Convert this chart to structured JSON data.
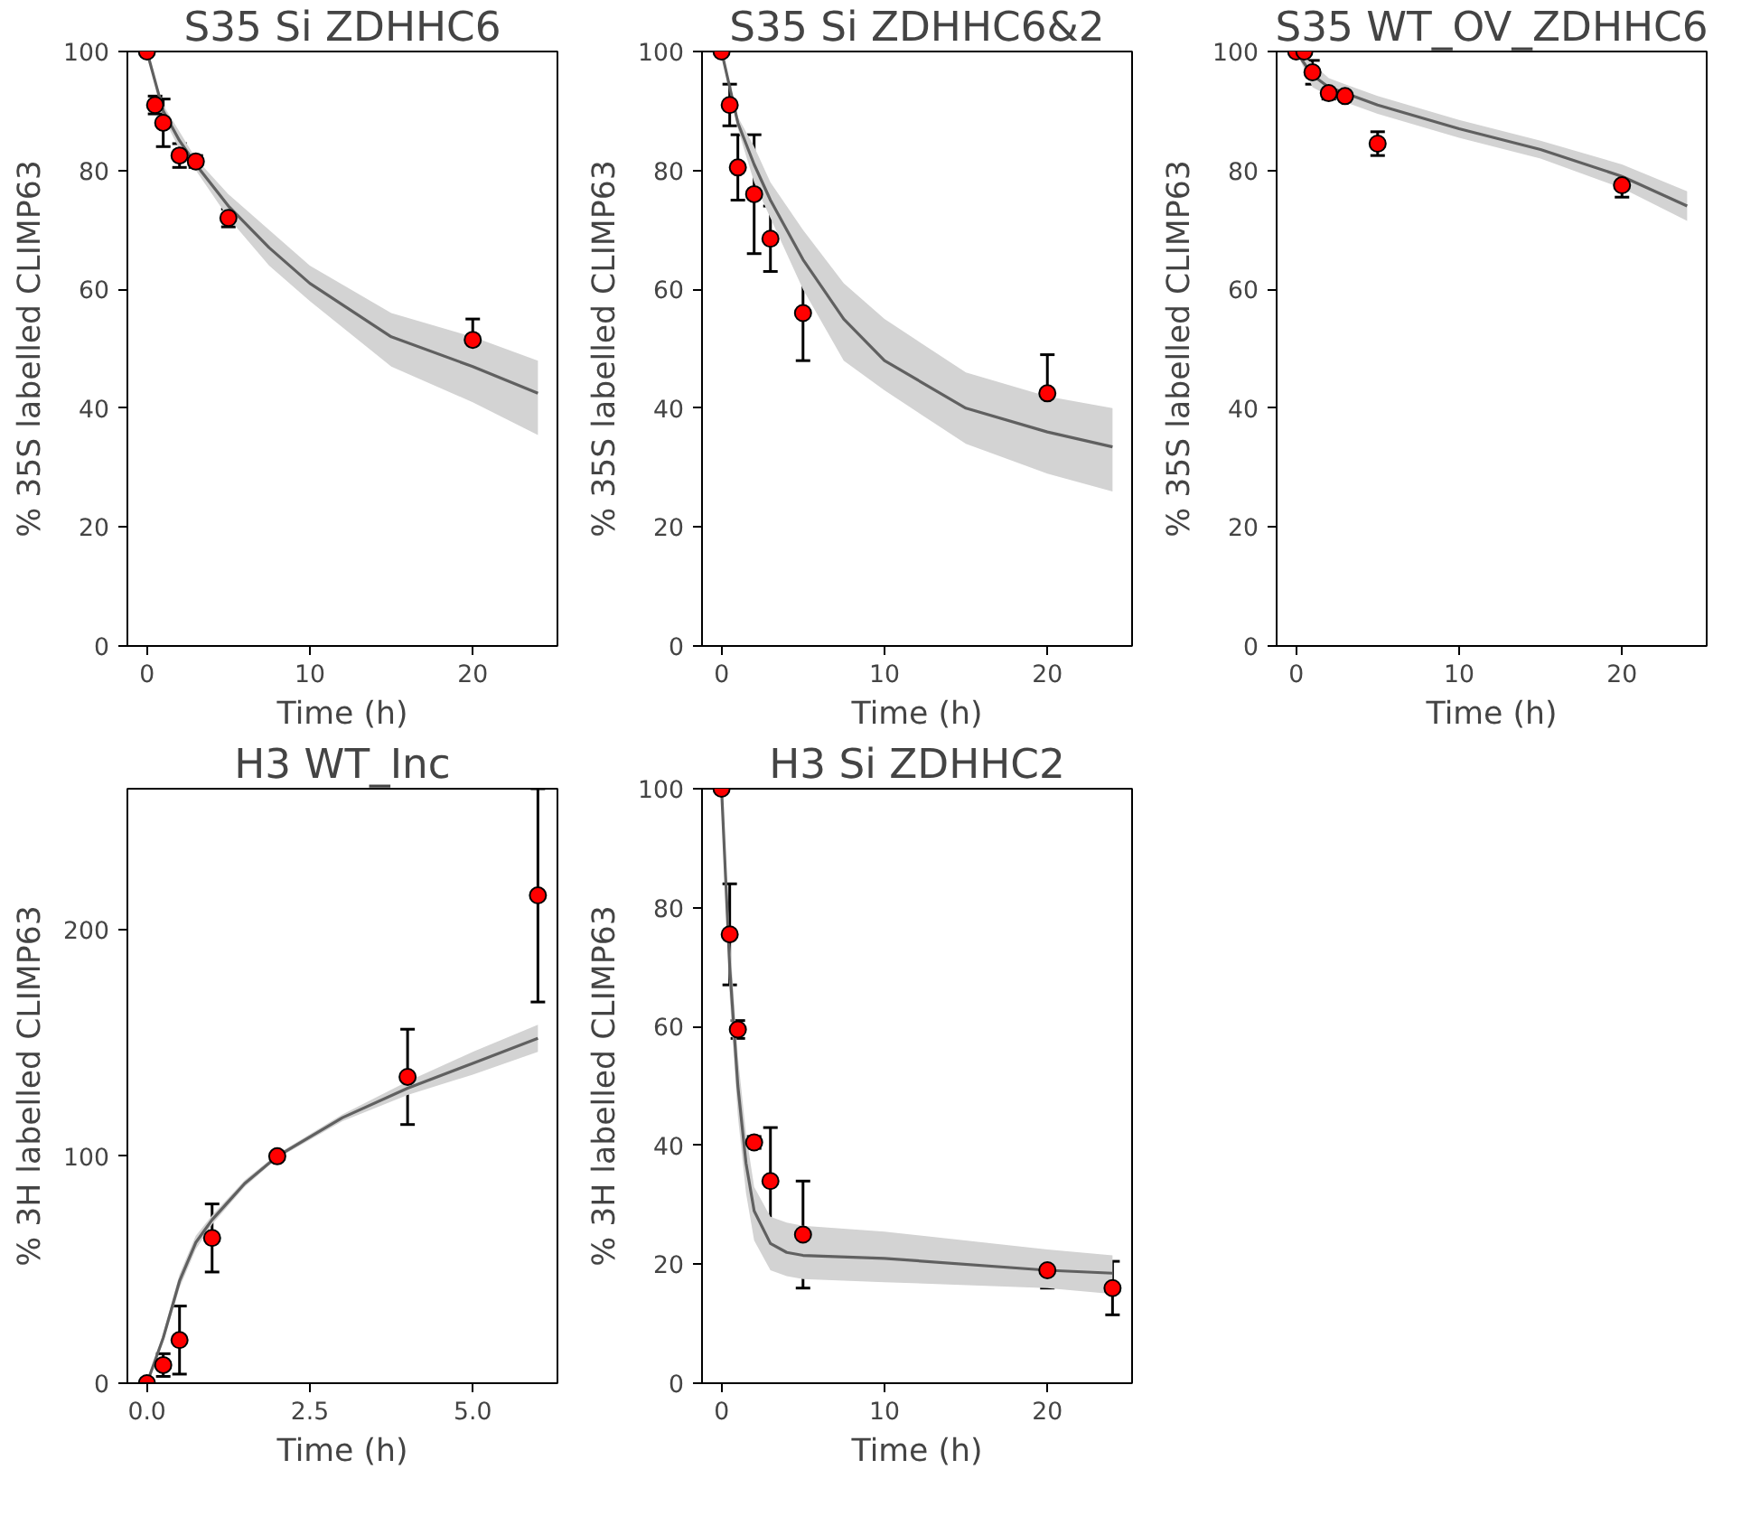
{
  "chart_data": [
    {
      "type": "scatter",
      "title": "S35 Si ZDHHC6",
      "xlabel": "Time (h)",
      "ylabel": "% 35S labelled CLIMP63",
      "xlim": [
        -1.2,
        25.2
      ],
      "ylim": [
        0,
        100
      ],
      "xticks": [
        0,
        10,
        20
      ],
      "yticks": [
        0,
        20,
        40,
        60,
        80,
        100
      ],
      "series": [
        {
          "type": "line",
          "color": "#606060",
          "x": [
            0,
            1,
            2,
            3,
            5,
            7.5,
            10,
            15,
            20,
            24
          ],
          "values": [
            100,
            90,
            85,
            81,
            74,
            67,
            61,
            52,
            47,
            42.5
          ],
          "lower": [
            100,
            89,
            83.5,
            80,
            72,
            64,
            58,
            47,
            41,
            35.5
          ],
          "upper": [
            100,
            91,
            86.5,
            82,
            76,
            70,
            64,
            56,
            52,
            48
          ]
        },
        {
          "marker": "circle",
          "color": "#ff0000",
          "x": [
            0,
            0.5,
            1,
            2,
            3,
            5,
            20
          ],
          "values": [
            100,
            91,
            88,
            82.5,
            81.5,
            72,
            51.5
          ],
          "errors": [
            0,
            1.5,
            4,
            2,
            1,
            1.5,
            3.5
          ]
        }
      ]
    },
    {
      "type": "scatter",
      "title": "S35 Si ZDHHC6&2",
      "xlabel": "Time (h)",
      "ylabel": "% 35S labelled CLIMP63",
      "xlim": [
        -1.2,
        25.2
      ],
      "ylim": [
        0,
        100
      ],
      "xticks": [
        0,
        10,
        20
      ],
      "yticks": [
        0,
        20,
        40,
        60,
        80,
        100
      ],
      "series": [
        {
          "type": "line",
          "color": "#606060",
          "x": [
            0,
            1,
            2,
            3,
            5,
            7.5,
            10,
            15,
            20,
            24
          ],
          "values": [
            100,
            88,
            81,
            75,
            65,
            55,
            48,
            40,
            36,
            33.5
          ],
          "lower": [
            100,
            87,
            78,
            72,
            60,
            48,
            43,
            34,
            29,
            26
          ],
          "upper": [
            100,
            89,
            84,
            78,
            70,
            61,
            55,
            46,
            42,
            40
          ]
        },
        {
          "marker": "circle",
          "color": "#ff0000",
          "x": [
            0,
            0.5,
            1,
            2,
            3,
            5,
            20
          ],
          "values": [
            100,
            91,
            80.5,
            76,
            68.5,
            56,
            42.5
          ],
          "errors": [
            0,
            3.5,
            5.5,
            10,
            5.5,
            8,
            6.5
          ]
        }
      ]
    },
    {
      "type": "scatter",
      "title": "S35 WT_OV_ZDHHC6",
      "xlabel": "Time (h)",
      "ylabel": "% 35S labelled CLIMP63",
      "xlim": [
        -1.2,
        25.2
      ],
      "ylim": [
        0,
        100
      ],
      "xticks": [
        0,
        10,
        20
      ],
      "yticks": [
        0,
        20,
        40,
        60,
        80,
        100
      ],
      "series": [
        {
          "type": "line",
          "color": "#606060",
          "x": [
            0,
            1,
            2,
            3,
            5,
            10,
            15,
            20,
            24
          ],
          "values": [
            100,
            96,
            94,
            93,
            91,
            87,
            83.5,
            79,
            74
          ],
          "lower": [
            100,
            94,
            92.5,
            91.5,
            89.5,
            85.5,
            82,
            77,
            71.5
          ],
          "upper": [
            100,
            98,
            95.5,
            94.5,
            92.5,
            88.5,
            85,
            81,
            76.5
          ]
        },
        {
          "marker": "circle",
          "color": "#ff0000",
          "x": [
            0,
            0.5,
            1,
            2,
            3,
            5,
            20
          ],
          "values": [
            100,
            100,
            96.5,
            93,
            92.5,
            84.5,
            77.5
          ],
          "errors": [
            0,
            0.5,
            2,
            1,
            0.5,
            2,
            2
          ]
        }
      ]
    },
    {
      "type": "scatter",
      "title": "H3 WT_Inc",
      "xlabel": "Time (h)",
      "ylabel": "% 3H labelled CLIMP63",
      "xlim": [
        -0.3,
        6.3
      ],
      "ylim": [
        0,
        262
      ],
      "xticks": [
        {
          "value": 0,
          "label": "0.0"
        },
        2.5,
        {
          "value": 5,
          "label": "5.0"
        }
      ],
      "yticks": [
        0,
        100,
        200
      ],
      "series": [
        {
          "type": "line",
          "color": "#606060",
          "x": [
            0,
            0.25,
            0.5,
            0.75,
            1,
            1.5,
            2,
            3,
            4,
            5,
            6
          ],
          "values": [
            0,
            20,
            45,
            62,
            72,
            88,
            100,
            117,
            130,
            141,
            152
          ],
          "lower": [
            0,
            18,
            42,
            59,
            70,
            86.5,
            99,
            115.5,
            127,
            136,
            146
          ],
          "upper": [
            0,
            22,
            48,
            65,
            74,
            89.5,
            101,
            118.5,
            133,
            146,
            158
          ]
        },
        {
          "marker": "circle",
          "color": "#ff0000",
          "x": [
            0,
            0.25,
            0.5,
            1,
            2,
            4,
            6
          ],
          "values": [
            0,
            8,
            19,
            64,
            100,
            135,
            215
          ],
          "errors": [
            0,
            5,
            15,
            15,
            0,
            21,
            47
          ]
        }
      ]
    },
    {
      "type": "scatter",
      "title": "H3 Si ZDHHC2",
      "xlabel": "Time (h)",
      "ylabel": "% 3H labelled CLIMP63",
      "xlim": [
        -1.2,
        25.2
      ],
      "ylim": [
        0,
        100
      ],
      "xticks": [
        0,
        10,
        20
      ],
      "yticks": [
        0,
        20,
        40,
        60,
        80,
        100
      ],
      "series": [
        {
          "type": "line",
          "color": "#606060",
          "x": [
            0,
            0.25,
            0.5,
            1,
            1.5,
            2,
            3,
            4,
            5,
            10,
            20,
            24
          ],
          "values": [
            100,
            85,
            70,
            50,
            37,
            29,
            23.5,
            22,
            21.5,
            21,
            19,
            18.5
          ],
          "lower": [
            100,
            82,
            65,
            45,
            32,
            24,
            19,
            18,
            17.5,
            17,
            16,
            15
          ],
          "upper": [
            100,
            88,
            75,
            55,
            42,
            33,
            28,
            27,
            26.5,
            25.5,
            22.5,
            21.5
          ]
        },
        {
          "marker": "circle",
          "color": "#ff0000",
          "x": [
            0,
            0.5,
            1,
            2,
            3,
            5,
            20,
            24
          ],
          "values": [
            100,
            75.5,
            59.5,
            40.5,
            34,
            25,
            19,
            16
          ],
          "errors": [
            0,
            8.5,
            1.5,
            1,
            9,
            9,
            3,
            4.5
          ]
        }
      ]
    }
  ]
}
